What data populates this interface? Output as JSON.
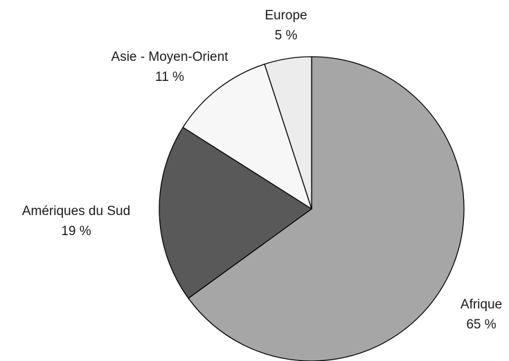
{
  "chart_data": {
    "type": "pie",
    "categories": [
      "Afrique",
      "Amériques du Sud",
      "Asie - Moyen-Orient",
      "Europe"
    ],
    "values": [
      65,
      19,
      11,
      5
    ],
    "value_labels": [
      "65 %",
      "19 %",
      "11 %",
      "5 %"
    ],
    "colors": [
      "#a6a6a6",
      "#595959",
      "#f7f7f7",
      "#ececec"
    ]
  }
}
